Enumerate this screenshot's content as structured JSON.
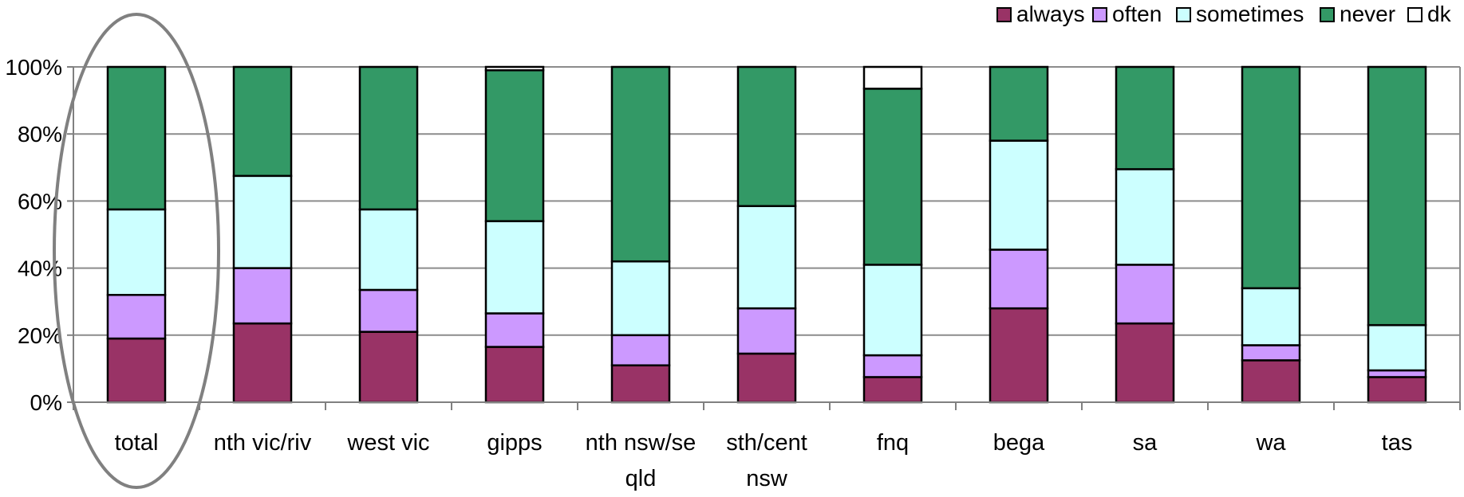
{
  "chart_data": {
    "type": "bar",
    "stacked": true,
    "categories": [
      "total",
      "nth vic/riv",
      "west vic",
      "gipps",
      "nth nsw/se qld",
      "sth/cent nsw",
      "fnq",
      "bega",
      "sa",
      "wa",
      "tas"
    ],
    "category_lines": [
      [
        "total"
      ],
      [
        "nth vic/riv"
      ],
      [
        "west vic"
      ],
      [
        "gipps"
      ],
      [
        "nth nsw/se",
        "qld"
      ],
      [
        "sth/cent",
        "nsw"
      ],
      [
        "fnq"
      ],
      [
        "bega"
      ],
      [
        "sa"
      ],
      [
        "wa"
      ],
      [
        "tas"
      ]
    ],
    "series": [
      {
        "name": "always",
        "color": "#993366",
        "values": [
          19,
          23.5,
          21,
          16.5,
          11,
          14.5,
          7.5,
          28,
          23.5,
          12.5,
          7.5
        ]
      },
      {
        "name": "often",
        "color": "#cc99ff",
        "values": [
          13,
          16.5,
          12.5,
          10,
          9,
          13.5,
          6.5,
          17.5,
          17.5,
          4.5,
          2
        ]
      },
      {
        "name": "sometimes",
        "color": "#ccffff",
        "values": [
          25.5,
          27.5,
          24,
          27.5,
          22,
          30.5,
          27,
          32.5,
          28.5,
          17,
          13.5
        ]
      },
      {
        "name": "never",
        "color": "#339966",
        "values": [
          42.5,
          32.5,
          42.5,
          45,
          58,
          41.5,
          52.5,
          22,
          30.5,
          66,
          77
        ]
      },
      {
        "name": "dk",
        "color": "#ffffff",
        "values": [
          0,
          0,
          0,
          1,
          0,
          0,
          6.5,
          0,
          0,
          0,
          0
        ]
      }
    ],
    "y_ticks": [
      "0%",
      "20%",
      "40%",
      "60%",
      "80%",
      "100%"
    ],
    "ylim": [
      0,
      100
    ],
    "gridlines": true,
    "legend_position": "top-right",
    "highlight_ellipse_category": "total"
  }
}
